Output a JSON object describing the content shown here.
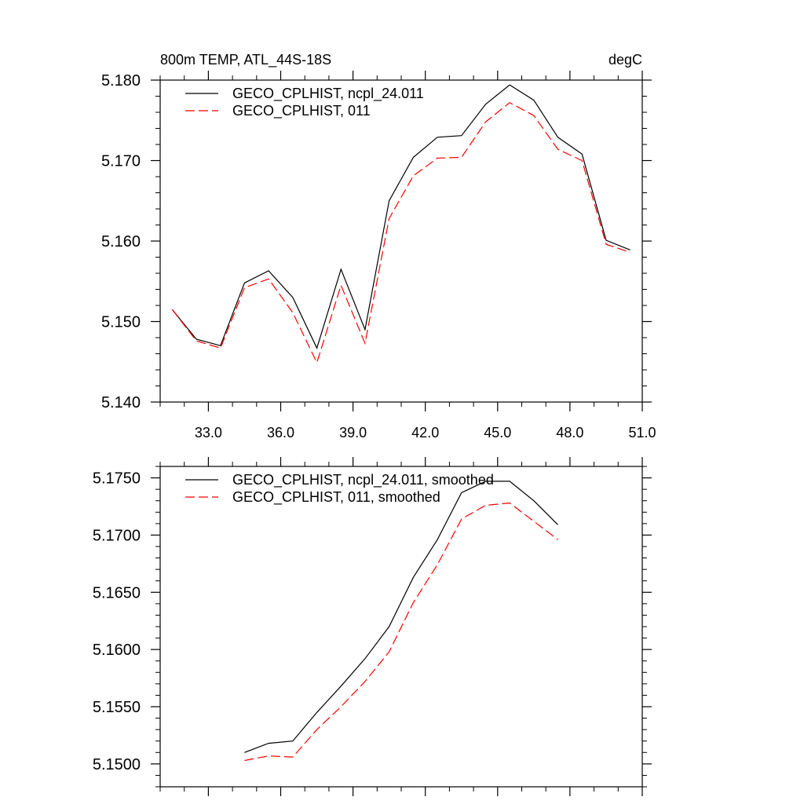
{
  "chart_data": [
    {
      "type": "line",
      "title_left": "800m TEMP, ATL_44S-18S",
      "title_right": "degC",
      "xlim": [
        31.0,
        51.0
      ],
      "ylim": [
        5.14,
        5.18
      ],
      "xticks": [
        33.0,
        36.0,
        39.0,
        42.0,
        45.0,
        48.0,
        51.0
      ],
      "xtick_labels": [
        "33.0",
        "36.0",
        "39.0",
        "42.0",
        "45.0",
        "48.0",
        "51.0"
      ],
      "yticks": [
        5.14,
        5.15,
        5.16,
        5.17,
        5.18
      ],
      "ytick_labels": [
        "5.140",
        "5.150",
        "5.160",
        "5.170",
        "5.180"
      ],
      "legend_position": "top-left",
      "x": [
        31.5,
        32.5,
        33.5,
        34.5,
        35.5,
        36.5,
        37.5,
        38.5,
        39.5,
        40.5,
        41.5,
        42.5,
        43.5,
        44.5,
        45.5,
        46.5,
        47.5,
        48.5,
        49.5,
        50.5
      ],
      "series": [
        {
          "name": "GECO_CPLHIST, ncpl_24.011",
          "color": "#000000",
          "dash": "solid",
          "values": [
            5.1515,
            5.1478,
            5.147,
            5.1548,
            5.1563,
            5.153,
            5.1467,
            5.1565,
            5.149,
            5.165,
            5.1704,
            5.1729,
            5.1731,
            5.177,
            5.1794,
            5.1775,
            5.1729,
            5.1708,
            5.1601,
            5.1589
          ]
        },
        {
          "name": "GECO_CPLHIST, 011",
          "color": "#ff0000",
          "dash": "dashed",
          "values": [
            5.1515,
            5.1476,
            5.1467,
            5.1542,
            5.1553,
            5.1511,
            5.1449,
            5.1545,
            5.1473,
            5.1628,
            5.1681,
            5.1703,
            5.1704,
            5.1748,
            5.1772,
            5.1756,
            5.1714,
            5.17,
            5.1596,
            5.1586
          ]
        }
      ]
    },
    {
      "type": "line",
      "xlim": [
        31.0,
        51.0
      ],
      "ylim": [
        5.148,
        5.176
      ],
      "xticks": [
        33.0,
        36.0,
        39.0,
        42.0,
        45.0,
        48.0,
        51.0
      ],
      "yticks": [
        5.15,
        5.155,
        5.16,
        5.165,
        5.17,
        5.175
      ],
      "ytick_labels": [
        "5.1500",
        "5.1550",
        "5.1600",
        "5.1650",
        "5.1700",
        "5.1750"
      ],
      "legend_position": "top-left",
      "x": [
        34.5,
        35.5,
        36.5,
        37.5,
        38.5,
        39.5,
        40.5,
        41.5,
        42.5,
        43.5,
        44.5,
        45.5,
        46.5,
        47.5
      ],
      "series": [
        {
          "name": "GECO_CPLHIST, ncpl_24.011, smoothed",
          "color": "#000000",
          "dash": "solid",
          "values": [
            5.151,
            5.1518,
            5.152,
            5.1545,
            5.1568,
            5.1592,
            5.162,
            5.1663,
            5.1696,
            5.1737,
            5.1747,
            5.1747,
            5.173,
            5.1709
          ]
        },
        {
          "name": "GECO_CPLHIST, 011, smoothed",
          "color": "#ff0000",
          "dash": "dashed",
          "values": [
            5.1503,
            5.1507,
            5.1506,
            5.153,
            5.155,
            5.1572,
            5.1598,
            5.1641,
            5.1674,
            5.1714,
            5.1726,
            5.1728,
            5.1712,
            5.1696
          ]
        }
      ]
    }
  ]
}
